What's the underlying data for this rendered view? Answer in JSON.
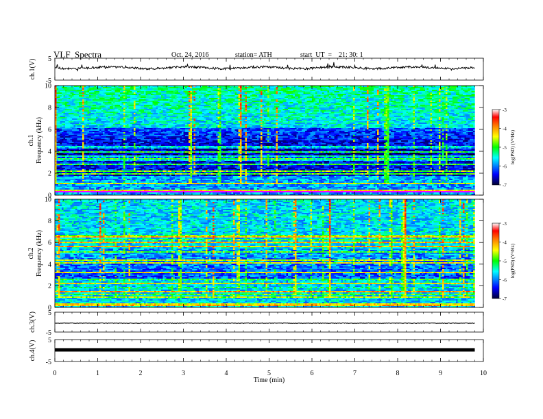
{
  "header": {
    "title": "VLF  Spectra",
    "date": "Oct. 24, 2016",
    "station": "station= ATH",
    "start": "start  UT  =    21: 30: 1"
  },
  "chart_data": {
    "type": "heatmap",
    "xlabel": "Time  (min)",
    "xlim": [
      0,
      10
    ],
    "xticks": [
      "0",
      "1",
      "2",
      "3",
      "4",
      "5",
      "6",
      "7",
      "8",
      "9",
      "10"
    ],
    "data_end_min": 9.8,
    "panels": [
      {
        "id": "ch1-wave",
        "kind": "line",
        "ylabel": "ch.1(V)",
        "ylim": [
          -5,
          5
        ],
        "yticks": [
          "5",
          "-5"
        ],
        "trace": "noisy waveform near +0.3 V"
      },
      {
        "id": "ch1-spec",
        "kind": "spectrogram",
        "ylabel_top": "ch.1",
        "ylabel": "Frequency  (kHz)",
        "ylim": [
          0,
          10
        ],
        "yticks": [
          "0",
          "2",
          "4",
          "6",
          "8",
          "10"
        ]
      },
      {
        "id": "ch2-spec",
        "kind": "spectrogram",
        "ylabel_top": "ch.2",
        "ylabel": "Frequency  (kHz)",
        "ylim": [
          0,
          10
        ],
        "yticks": [
          "0",
          "2",
          "4",
          "6",
          "8",
          "10"
        ]
      },
      {
        "id": "ch3-wave",
        "kind": "line",
        "ylabel": "ch.3(V)",
        "ylim": [
          -5,
          5
        ],
        "yticks": [
          "5",
          "-5"
        ],
        "trace": "flat near 0 V"
      },
      {
        "id": "ch4-wave",
        "kind": "line",
        "ylabel": "ch.4(V)",
        "ylim": [
          -5,
          5
        ],
        "yticks": [
          "5",
          "-5"
        ],
        "trace": "thick flat band near 0 V"
      }
    ],
    "colorbar": {
      "label": "log(PSD) (V²/Hz)",
      "range": [
        -7,
        -3
      ],
      "ticks": [
        "-3",
        "-4",
        "-5",
        "-6",
        "-7"
      ],
      "colors": [
        "#000033",
        "#0000ff",
        "#00ffff",
        "#00ff00",
        "#ffff00",
        "#ff8000",
        "#ff0000",
        "#ffffff"
      ]
    }
  }
}
